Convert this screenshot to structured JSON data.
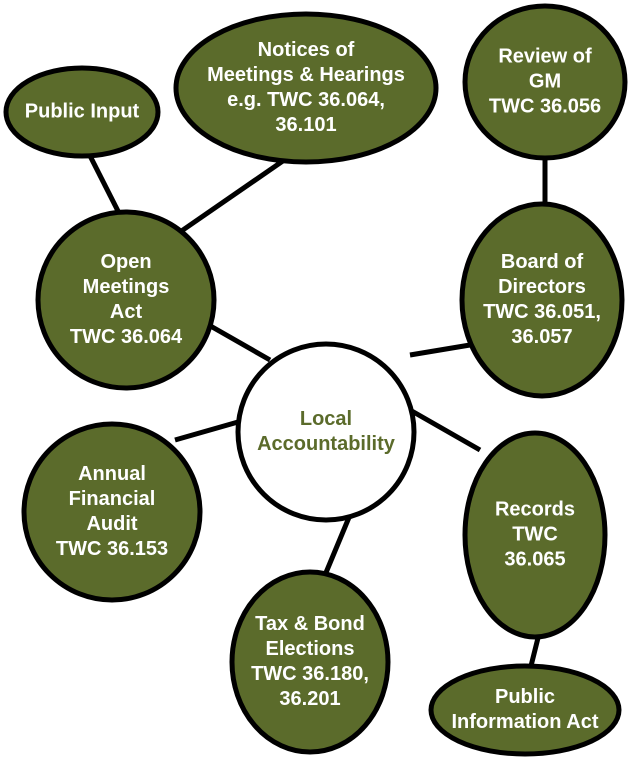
{
  "nodes": [
    {
      "lines": [
        "Local",
        "Accountability"
      ]
    },
    {
      "lines": [
        "Public Input"
      ]
    },
    {
      "lines": [
        "Notices of",
        "Meetings & Hearings",
        "e.g. TWC 36.064,",
        "36.101"
      ]
    },
    {
      "lines": [
        "Review of",
        "GM",
        "TWC 36.056"
      ]
    },
    {
      "lines": [
        "Open",
        "Meetings",
        "Act",
        "TWC 36.064"
      ]
    },
    {
      "lines": [
        "Board of",
        "Directors",
        "TWC 36.051,",
        "36.057"
      ]
    },
    {
      "lines": [
        "Annual",
        "Financial",
        "Audit",
        "TWC 36.153"
      ]
    },
    {
      "lines": [
        "Records",
        "TWC",
        "36.065"
      ]
    },
    {
      "lines": [
        "Tax & Bond",
        "Elections",
        "TWC 36.180,",
        "36.201"
      ]
    },
    {
      "lines": [
        "Public",
        "Information Act"
      ]
    }
  ]
}
